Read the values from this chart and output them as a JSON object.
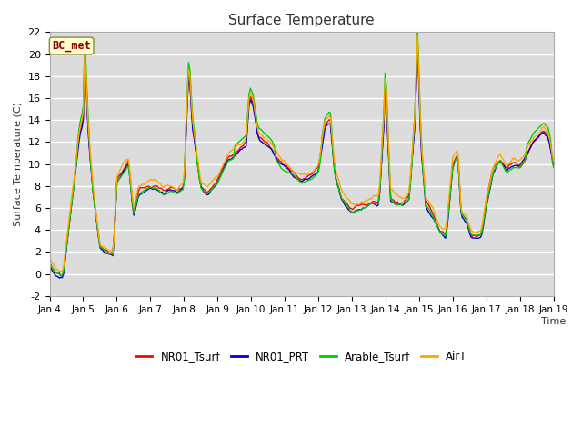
{
  "title": "Surface Temperature",
  "ylabel": "Surface Temperature (C)",
  "xlabel": "Time",
  "ylim": [
    -2,
    22
  ],
  "annotation": "BC_met",
  "annotation_color": "#8B0000",
  "annotation_bg": "#FFFFCC",
  "fig_bg": "#FFFFFF",
  "plot_bg": "#DCDCDC",
  "grid_color": "#FFFFFF",
  "series": {
    "NR01_Tsurf": {
      "color": "#FF0000",
      "lw": 1.0
    },
    "NR01_PRT": {
      "color": "#0000CC",
      "lw": 1.0
    },
    "Arable_Tsurf": {
      "color": "#00CC00",
      "lw": 1.0
    },
    "AirT": {
      "color": "#FFA500",
      "lw": 1.0
    }
  },
  "xtick_labels": [
    "Jan 4",
    "Jan 5",
    "Jan 6",
    "Jan 7",
    "Jan 8",
    "Jan 9",
    "Jan 10",
    "Jan 11",
    "Jan 12",
    "Jan 13",
    "Jan 14",
    "Jan 15",
    "Jan 16",
    "Jan 17",
    "Jan 18",
    "Jan 19"
  ],
  "ytick_values": [
    -2,
    0,
    2,
    4,
    6,
    8,
    10,
    12,
    14,
    16,
    18,
    20,
    22
  ]
}
